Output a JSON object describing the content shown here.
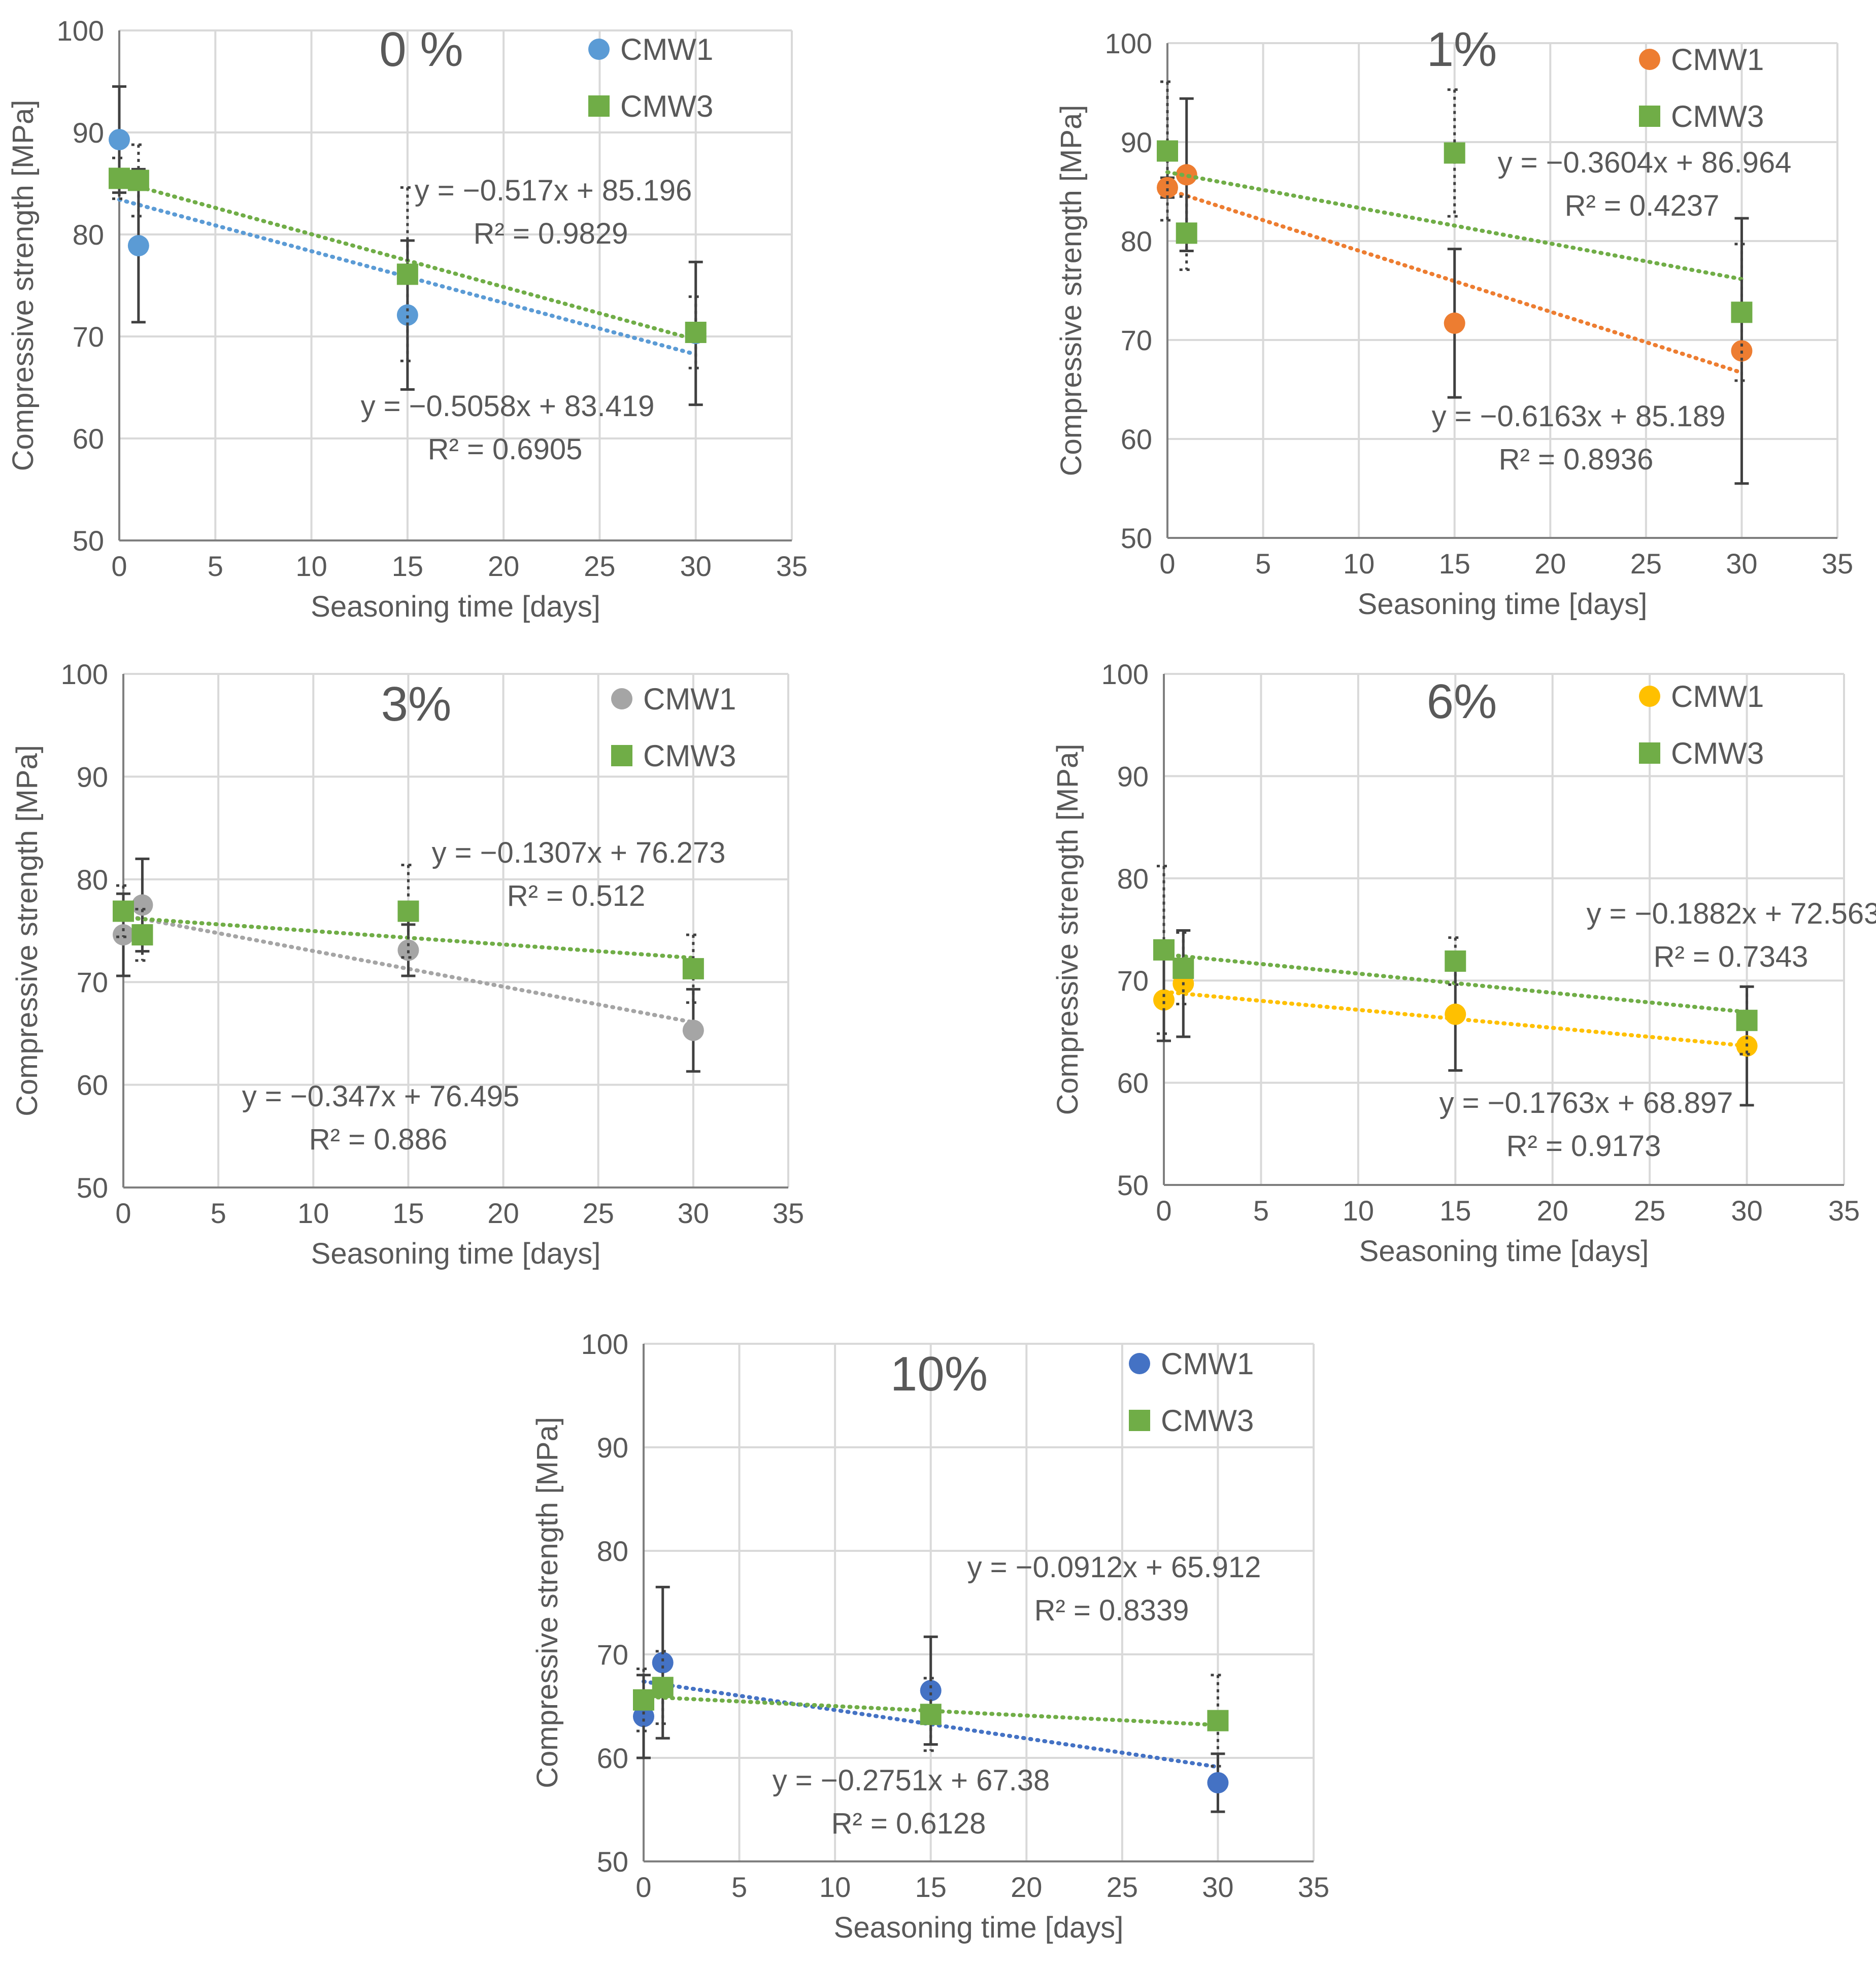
{
  "chart_data": [
    {
      "type": "scatter",
      "title": "0 %",
      "xlabel": "Seasoning time [days]",
      "ylabel": "Compressive strength [MPa]",
      "xlim": [
        0,
        35
      ],
      "ylim": [
        50,
        100
      ],
      "xticks": [
        0,
        5,
        10,
        15,
        20,
        25,
        30,
        35
      ],
      "yticks": [
        50,
        60,
        70,
        80,
        90,
        100
      ],
      "series": [
        {
          "name": "CMW1",
          "marker": "circle",
          "color": "#5b9bd5",
          "x": [
            0,
            1,
            15,
            30
          ],
          "y": [
            89.3,
            78.9,
            72.1,
            70.3
          ],
          "err": [
            5.2,
            7.5,
            7.3,
            7.0
          ],
          "trend": {
            "slope": -0.5058,
            "intercept": 83.419,
            "label": "y = −0.5058x + 83.419",
            "r2": "R² = 0.6905"
          }
        },
        {
          "name": "CMW3",
          "marker": "square",
          "color": "#70ad47",
          "x": [
            0,
            1,
            15,
            30
          ],
          "y": [
            85.5,
            85.3,
            76.1,
            70.4
          ],
          "err": [
            2.0,
            3.5,
            8.5,
            3.5
          ],
          "trend": {
            "slope": -0.517,
            "intercept": 85.196,
            "label": "y = −0.517x + 85.196",
            "r2": "R² = 0.9829"
          }
        }
      ]
    },
    {
      "type": "scatter",
      "title": "1%",
      "xlabel": "Seasoning time [days]",
      "ylabel": "Compressive strength [MPa]",
      "xlim": [
        0,
        35
      ],
      "ylim": [
        50,
        100
      ],
      "xticks": [
        0,
        5,
        10,
        15,
        20,
        25,
        30,
        35
      ],
      "yticks": [
        50,
        60,
        70,
        80,
        90,
        100
      ],
      "series": [
        {
          "name": "CMW1",
          "marker": "circle",
          "color": "#ed7d31",
          "x": [
            0,
            1,
            15,
            30
          ],
          "y": [
            85.4,
            86.7,
            71.7,
            68.9
          ],
          "err": [
            1.0,
            7.7,
            7.5,
            13.4
          ],
          "trend": {
            "slope": -0.6163,
            "intercept": 85.189,
            "label": "y = −0.6163x + 85.189",
            "r2": "R² = 0.8936"
          }
        },
        {
          "name": "CMW3",
          "marker": "square",
          "color": "#70ad47",
          "x": [
            0,
            1,
            15,
            30
          ],
          "y": [
            89.1,
            80.8,
            88.9,
            72.8
          ],
          "err": [
            7.0,
            3.7,
            6.4,
            6.9
          ],
          "trend": {
            "slope": -0.3604,
            "intercept": 86.964,
            "label": "y = −0.3604x + 86.964",
            "r2": "R² = 0.4237"
          }
        }
      ]
    },
    {
      "type": "scatter",
      "title": "3%",
      "xlabel": "Seasoning time [days]",
      "ylabel": "Compressive strength [MPa]",
      "xlim": [
        0,
        35
      ],
      "ylim": [
        50,
        100
      ],
      "xticks": [
        0,
        5,
        10,
        15,
        20,
        25,
        30,
        35
      ],
      "yticks": [
        50,
        60,
        70,
        80,
        90,
        100
      ],
      "series": [
        {
          "name": "CMW1",
          "marker": "circle",
          "color": "#a5a5a5",
          "x": [
            0,
            1,
            15,
            30
          ],
          "y": [
            74.6,
            77.5,
            73.1,
            65.3
          ],
          "err": [
            4.0,
            4.5,
            2.5,
            4.0
          ],
          "trend": {
            "slope": -0.347,
            "intercept": 76.495,
            "label": "y = −0.347x + 76.495",
            "r2": "R² = 0.886"
          }
        },
        {
          "name": "CMW3",
          "marker": "square",
          "color": "#70ad47",
          "x": [
            0,
            1,
            15,
            30
          ],
          "y": [
            76.9,
            74.6,
            76.9,
            71.3
          ],
          "err": [
            2.5,
            2.5,
            4.5,
            3.3
          ],
          "trend": {
            "slope": -0.1307,
            "intercept": 76.273,
            "label": "y = −0.1307x + 76.273",
            "r2": "R² = 0.512"
          }
        }
      ]
    },
    {
      "type": "scatter",
      "title": "6%",
      "xlabel": "Seasoning time [days]",
      "ylabel": "Compressive strength [MPa]",
      "xlim": [
        0,
        35
      ],
      "ylim": [
        50,
        100
      ],
      "xticks": [
        0,
        5,
        10,
        15,
        20,
        25,
        30,
        35
      ],
      "yticks": [
        50,
        60,
        70,
        80,
        90,
        100
      ],
      "series": [
        {
          "name": "CMW1",
          "marker": "circle",
          "color": "#ffc000",
          "x": [
            0,
            1,
            15,
            30
          ],
          "y": [
            68.1,
            69.7,
            66.7,
            63.6
          ],
          "err": [
            4.0,
            5.2,
            5.5,
            5.8
          ],
          "trend": {
            "slope": -0.1763,
            "intercept": 68.897,
            "label": "y = −0.1763x + 68.897",
            "r2": "R² = 0.9173"
          }
        },
        {
          "name": "CMW3",
          "marker": "square",
          "color": "#70ad47",
          "x": [
            0,
            1,
            15,
            30
          ],
          "y": [
            73.0,
            71.2,
            71.9,
            66.1
          ],
          "err": [
            8.2,
            3.5,
            2.3,
            3.3
          ],
          "trend": {
            "slope": -0.1882,
            "intercept": 72.563,
            "label": "y = −0.1882x + 72.563",
            "r2": "R² = 0.7343"
          }
        }
      ]
    },
    {
      "type": "scatter",
      "title": "10%",
      "xlabel": "Seasoning time [days]",
      "ylabel": "Compressive strength [MPa]",
      "xlim": [
        0,
        35
      ],
      "ylim": [
        50,
        100
      ],
      "xticks": [
        0,
        5,
        10,
        15,
        20,
        25,
        30,
        35
      ],
      "yticks": [
        50,
        60,
        70,
        80,
        90,
        100
      ],
      "series": [
        {
          "name": "CMW1",
          "marker": "circle",
          "color": "#4472c4",
          "x": [
            0,
            1,
            15,
            30
          ],
          "y": [
            64.0,
            69.2,
            66.5,
            57.6
          ],
          "err": [
            4.0,
            7.3,
            5.2,
            2.8
          ],
          "trend": {
            "slope": -0.2751,
            "intercept": 67.38,
            "label": "y = −0.2751x + 67.38",
            "r2": "R² = 0.6128"
          }
        },
        {
          "name": "CMW3",
          "marker": "square",
          "color": "#70ad47",
          "x": [
            0,
            1,
            15,
            30
          ],
          "y": [
            65.6,
            66.8,
            64.2,
            63.6
          ],
          "err": [
            3.0,
            3.5,
            3.5,
            4.4
          ],
          "trend": {
            "slope": -0.0912,
            "intercept": 65.912,
            "label": "y = −0.0912x + 65.912",
            "r2": "R² = 0.8339"
          }
        }
      ]
    }
  ]
}
